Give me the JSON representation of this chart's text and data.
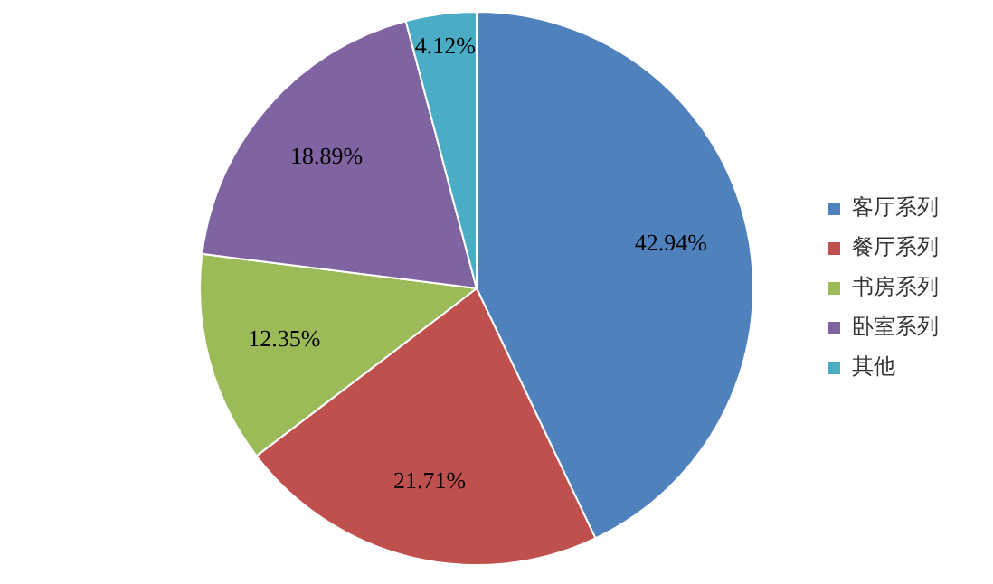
{
  "chart_data": {
    "type": "pie",
    "categories": [
      "客厅系列",
      "餐厅系列",
      "书房系列",
      "卧室系列",
      "其他"
    ],
    "values": [
      42.94,
      21.71,
      12.35,
      18.89,
      4.12
    ],
    "colors": [
      "#4f81bd",
      "#c0504d",
      "#9bbb59",
      "#8064a2",
      "#4bacc6"
    ],
    "value_labels": [
      "42.94%",
      "21.71%",
      "12.35%",
      "18.89%",
      "4.12%"
    ],
    "legend": "right"
  }
}
